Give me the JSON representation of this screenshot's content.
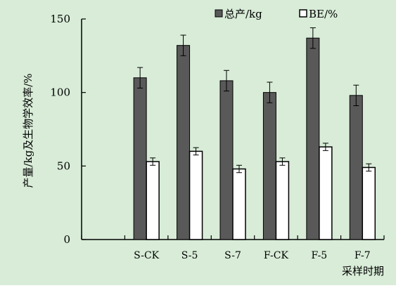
{
  "chart_data": {
    "type": "bar",
    "title": "",
    "xlabel": "采样时期",
    "ylabel": "产量/kg及生物学效率/%",
    "categories": [
      "",
      "S-CK",
      "S-5",
      "S-7",
      "F-CK",
      "F-5",
      "F-7"
    ],
    "ylim": [
      0,
      150
    ],
    "yticks": [
      0,
      50,
      100,
      150
    ],
    "grid": false,
    "legend": "top-right",
    "background": "#d8ecd8",
    "series": [
      {
        "name": "总产/kg",
        "color": "#595959",
        "stroke": "#000000",
        "values": [
          null,
          110,
          132,
          108,
          100,
          137,
          98
        ],
        "errors": [
          null,
          7,
          7,
          7,
          7,
          7,
          7
        ]
      },
      {
        "name": "BE/%",
        "color": "#ffffff",
        "stroke": "#000000",
        "values": [
          null,
          53,
          60,
          48,
          53,
          63,
          49
        ],
        "errors": [
          null,
          2.5,
          2.5,
          2.5,
          2.5,
          2.5,
          2.5
        ]
      }
    ]
  }
}
